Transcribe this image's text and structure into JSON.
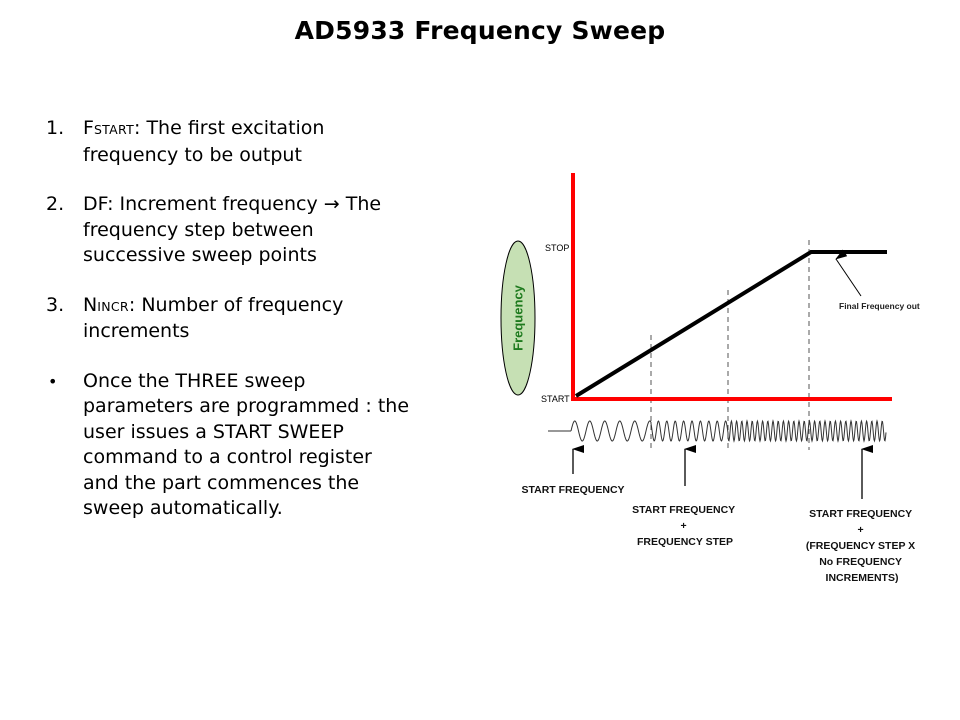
{
  "slide": {
    "title": "AD5933 Frequency Sweep"
  },
  "bullets": {
    "items": [
      {
        "marker": "1.",
        "lead": "F",
        "lead_sub": "START",
        "line1_rest": ": The first excitation",
        "line2": "frequency to be output"
      },
      {
        "marker": "2.",
        "line1": "DF: Increment frequency",
        "arrow": "→",
        "line1_end": "The",
        "line2": "frequency step between",
        "line3": "successive sweep points"
      },
      {
        "marker": "3.",
        "lead": "N",
        "lead_sub": "INCR",
        "line1_rest": ": Number of frequency",
        "line2": "increments"
      },
      {
        "marker": "•",
        "line1": "Once the THREE sweep",
        "line2": "parameters are programmed  : the",
        "line3": "user  issues a START SWEEP",
        "line4": "command to a control register",
        "line5": "and the part commences the",
        "line6": "sweep automatically."
      }
    ]
  },
  "diagram": {
    "y_axis_label": "Frequency",
    "y_tick_stop": "STOP",
    "y_tick_start": "START",
    "callout": "Final Frequency out",
    "markers": [
      {
        "lines": [
          "START FREQUENCY"
        ]
      },
      {
        "lines": [
          "START FREQUENCY",
          "+",
          "FREQUENCY STEP"
        ]
      },
      {
        "lines": [
          "START FREQUENCY",
          "+",
          "(FREQUENCY STEP X",
          "No FREQUENCY",
          "INCREMENTS)"
        ]
      }
    ],
    "colors": {
      "axis": "#ff0000",
      "ramp": "#000000",
      "label_ellipse_fill": "#c6e0b4",
      "label_text": "#1e7a1e",
      "dashed": "#555555",
      "waveform": "#333333"
    }
  }
}
